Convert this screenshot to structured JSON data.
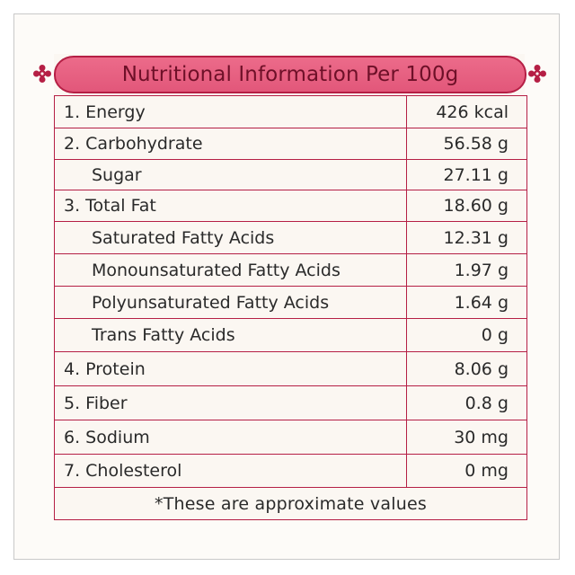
{
  "title": "Nutritional Information Per 100g",
  "rows": [
    {
      "label": "1. Energy",
      "value": "426 kcal"
    },
    {
      "label": "2. Carbohydrate",
      "value": "56.58 g"
    },
    {
      "label": "Sugar",
      "value": "27.11 g"
    },
    {
      "label": "3. Total Fat",
      "value": "18.60 g"
    },
    {
      "label": "Saturated Fatty Acids",
      "value": "12.31 g"
    },
    {
      "label": "Monounsaturated Fatty Acids",
      "value": "1.97 g"
    },
    {
      "label": "Polyunsaturated Fatty Acids",
      "value": "1.64 g"
    },
    {
      "label": "Trans Fatty Acids",
      "value": "0 g"
    },
    {
      "label": "4. Protein",
      "value": "8.06 g"
    },
    {
      "label": "5. Fiber",
      "value": "0.8 g"
    },
    {
      "label": "6. Sodium",
      "value": "30 mg"
    },
    {
      "label": "7. Cholesterol",
      "value": "0 mg"
    }
  ],
  "footnote": "*These are approximate values",
  "colors": {
    "border": "#b51f45",
    "banner": "#e2577a",
    "title_text": "#6e1028"
  },
  "icons": {
    "ornament": "floral-ornament-icon"
  }
}
